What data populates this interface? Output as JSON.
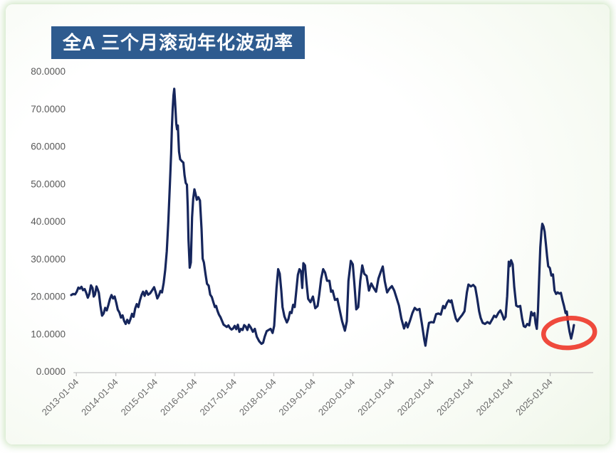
{
  "panel": {
    "glow_color": "#d7ebcb"
  },
  "chart": {
    "title": "全A 三个月滚动年化波动率",
    "title_bg": "#2E5B8F",
    "title_color": "#FFFFFF",
    "line_color": "#16265C",
    "axis_color": "#C6C6C6",
    "y_label_color": "#595959",
    "x_label_color": "#6A6A6A",
    "highlight_color": "#EE3B2C"
  },
  "chart_data": {
    "type": "line",
    "title": "全A 三个月滚动年化波动率",
    "xlabel": "",
    "ylabel": "",
    "ylim": [
      0,
      80
    ],
    "y_tick_labels": [
      "0.0000",
      "10.0000",
      "20.0000",
      "30.0000",
      "40.0000",
      "50.0000",
      "60.0000",
      "70.0000",
      "80.0000"
    ],
    "x_tick_labels": [
      "2013-01-04",
      "2014-01-04",
      "2015-01-04",
      "2016-01-04",
      "2017-01-04",
      "2018-01-04",
      "2019-01-04",
      "2020-01-04",
      "2021-01-04",
      "2022-01-04",
      "2023-01-04",
      "2024-01-04",
      "2025-01-04"
    ],
    "grid": false,
    "legend": false,
    "series": [
      {
        "name": "全A三个月滚动年化波动率",
        "points": [
          [
            0,
            20.3
          ],
          [
            0.05,
            20.6
          ],
          [
            0.1,
            20.5
          ],
          [
            0.14,
            21.2
          ],
          [
            0.18,
            22.3
          ],
          [
            0.22,
            22
          ],
          [
            0.26,
            22.5
          ],
          [
            0.3,
            21.6
          ],
          [
            0.34,
            21.9
          ],
          [
            0.38,
            20.9
          ],
          [
            0.42,
            19.6
          ],
          [
            0.46,
            20.6
          ],
          [
            0.5,
            22.9
          ],
          [
            0.54,
            22.2
          ],
          [
            0.57,
            19.9
          ],
          [
            0.6,
            20.4
          ],
          [
            0.64,
            22.6
          ],
          [
            0.67,
            21.8
          ],
          [
            0.7,
            20.9
          ],
          [
            0.74,
            17.5
          ],
          [
            0.78,
            14.8
          ],
          [
            0.82,
            15.4
          ],
          [
            0.86,
            16.9
          ],
          [
            0.9,
            16.2
          ],
          [
            0.94,
            17.6
          ],
          [
            0.98,
            19.2
          ],
          [
            1.02,
            20.3
          ],
          [
            1.06,
            19.4
          ],
          [
            1.1,
            19.9
          ],
          [
            1.14,
            18.3
          ],
          [
            1.18,
            16.4
          ],
          [
            1.22,
            15.7
          ],
          [
            1.26,
            14.3
          ],
          [
            1.3,
            14.9
          ],
          [
            1.34,
            13.4
          ],
          [
            1.38,
            12.6
          ],
          [
            1.42,
            13.7
          ],
          [
            1.46,
            12.8
          ],
          [
            1.5,
            13.9
          ],
          [
            1.54,
            15.3
          ],
          [
            1.58,
            14.5
          ],
          [
            1.62,
            16.7
          ],
          [
            1.66,
            17.9
          ],
          [
            1.7,
            17.1
          ],
          [
            1.74,
            18.9
          ],
          [
            1.78,
            20.3
          ],
          [
            1.82,
            21.2
          ],
          [
            1.86,
            20.1
          ],
          [
            1.9,
            21.4
          ],
          [
            1.95,
            20.4
          ],
          [
            2,
            20.8
          ],
          [
            2.05,
            21.6
          ],
          [
            2.1,
            22.4
          ],
          [
            2.14,
            21
          ],
          [
            2.18,
            19.4
          ],
          [
            2.22,
            20.2
          ],
          [
            2.26,
            21.4
          ],
          [
            2.3,
            21
          ],
          [
            2.34,
            23.5
          ],
          [
            2.38,
            27
          ],
          [
            2.42,
            32
          ],
          [
            2.46,
            40
          ],
          [
            2.5,
            50
          ],
          [
            2.53,
            58
          ],
          [
            2.55,
            65
          ],
          [
            2.57,
            70
          ],
          [
            2.59,
            73.5
          ],
          [
            2.61,
            75.3
          ],
          [
            2.63,
            72
          ],
          [
            2.66,
            66
          ],
          [
            2.68,
            64.5
          ],
          [
            2.7,
            65.5
          ],
          [
            2.73,
            58.5
          ],
          [
            2.76,
            56.5
          ],
          [
            2.8,
            56
          ],
          [
            2.84,
            55.6
          ],
          [
            2.87,
            52.3
          ],
          [
            2.9,
            50.2
          ],
          [
            2.93,
            49.7
          ],
          [
            2.95,
            44
          ],
          [
            2.97,
            35
          ],
          [
            3,
            27.6
          ],
          [
            3.03,
            29
          ],
          [
            3.06,
            41
          ],
          [
            3.09,
            46
          ],
          [
            3.12,
            48.5
          ],
          [
            3.15,
            47.2
          ],
          [
            3.18,
            45.7
          ],
          [
            3.22,
            46.4
          ],
          [
            3.26,
            45.5
          ],
          [
            3.3,
            38
          ],
          [
            3.33,
            30
          ],
          [
            3.36,
            29
          ],
          [
            3.4,
            26
          ],
          [
            3.44,
            23.3
          ],
          [
            3.48,
            22.8
          ],
          [
            3.52,
            20.4
          ],
          [
            3.56,
            19.8
          ],
          [
            3.6,
            18.4
          ],
          [
            3.64,
            17.1
          ],
          [
            3.67,
            17.4
          ],
          [
            3.7,
            16.2
          ],
          [
            3.74,
            15.1
          ],
          [
            3.78,
            14.4
          ],
          [
            3.82,
            13.4
          ],
          [
            3.86,
            12.4
          ],
          [
            3.9,
            12.1
          ],
          [
            3.94,
            11.8
          ],
          [
            3.98,
            12.2
          ],
          [
            4.02,
            11.5
          ],
          [
            4.06,
            11.1
          ],
          [
            4.1,
            11.4
          ],
          [
            4.14,
            12.1
          ],
          [
            4.18,
            11.2
          ],
          [
            4.22,
            12.4
          ],
          [
            4.26,
            10.5
          ],
          [
            4.3,
            11.3
          ],
          [
            4.34,
            11
          ],
          [
            4.38,
            12.3
          ],
          [
            4.42,
            11.9
          ],
          [
            4.46,
            11
          ],
          [
            4.5,
            12.4
          ],
          [
            4.55,
            11.6
          ],
          [
            4.6,
            10.5
          ],
          [
            4.65,
            11.3
          ],
          [
            4.7,
            9.2
          ],
          [
            4.76,
            8
          ],
          [
            4.82,
            7.3
          ],
          [
            4.86,
            7.6
          ],
          [
            4.9,
            9.2
          ],
          [
            4.95,
            10.7
          ],
          [
            5,
            11
          ],
          [
            5.05,
            11.3
          ],
          [
            5.1,
            10.2
          ],
          [
            5.14,
            12.1
          ],
          [
            5.2,
            22.2
          ],
          [
            5.24,
            27.2
          ],
          [
            5.28,
            26
          ],
          [
            5.32,
            21.5
          ],
          [
            5.35,
            17.1
          ],
          [
            5.4,
            14.6
          ],
          [
            5.46,
            13
          ],
          [
            5.5,
            13.9
          ],
          [
            5.54,
            15.8
          ],
          [
            5.58,
            15.5
          ],
          [
            5.62,
            17.7
          ],
          [
            5.66,
            17.1
          ],
          [
            5.7,
            21.5
          ],
          [
            5.74,
            25.7
          ],
          [
            5.78,
            27.2
          ],
          [
            5.82,
            26.6
          ],
          [
            5.85,
            22.2
          ],
          [
            5.88,
            28.8
          ],
          [
            5.92,
            28.2
          ],
          [
            5.96,
            23.4
          ],
          [
            6,
            19.3
          ],
          [
            6.06,
            18.4
          ],
          [
            6.12,
            19.9
          ],
          [
            6.18,
            16.8
          ],
          [
            6.24,
            17.4
          ],
          [
            6.28,
            20.3
          ],
          [
            6.33,
            24.7
          ],
          [
            6.38,
            27.2
          ],
          [
            6.43,
            26.3
          ],
          [
            6.48,
            24.1
          ],
          [
            6.54,
            24.1
          ],
          [
            6.58,
            21.2
          ],
          [
            6.62,
            21.5
          ],
          [
            6.68,
            19
          ],
          [
            6.74,
            19.3
          ],
          [
            6.8,
            16.2
          ],
          [
            6.86,
            13.3
          ],
          [
            6.93,
            10.8
          ],
          [
            6.98,
            13.3
          ],
          [
            7.02,
            24.1
          ],
          [
            7.08,
            29.4
          ],
          [
            7.13,
            28.5
          ],
          [
            7.17,
            23.4
          ],
          [
            7.22,
            16.5
          ],
          [
            7.27,
            17.1
          ],
          [
            7.32,
            24.1
          ],
          [
            7.37,
            28.2
          ],
          [
            7.42,
            26
          ],
          [
            7.48,
            25.4
          ],
          [
            7.54,
            21.5
          ],
          [
            7.6,
            23.4
          ],
          [
            7.66,
            22.2
          ],
          [
            7.72,
            21.2
          ],
          [
            7.78,
            24.7
          ],
          [
            7.84,
            26.5
          ],
          [
            7.89,
            27.9
          ],
          [
            7.94,
            24
          ],
          [
            8,
            21
          ],
          [
            8.06,
            22
          ],
          [
            8.12,
            22.7
          ],
          [
            8.18,
            21.5
          ],
          [
            8.24,
            19.5
          ],
          [
            8.3,
            17.5
          ],
          [
            8.36,
            14
          ],
          [
            8.43,
            11.4
          ],
          [
            8.48,
            13
          ],
          [
            8.52,
            11.7
          ],
          [
            8.58,
            13.5
          ],
          [
            8.64,
            15.5
          ],
          [
            8.7,
            16.9
          ],
          [
            8.76,
            16.3
          ],
          [
            8.82,
            16.6
          ],
          [
            8.88,
            12.7
          ],
          [
            8.94,
            8.5
          ],
          [
            8.97,
            6.8
          ],
          [
            9.02,
            10.5
          ],
          [
            9.06,
            12.9
          ],
          [
            9.12,
            13.1
          ],
          [
            9.18,
            13
          ],
          [
            9.24,
            15.2
          ],
          [
            9.3,
            15.4
          ],
          [
            9.36,
            15.1
          ],
          [
            9.42,
            17.4
          ],
          [
            9.46,
            16.8
          ],
          [
            9.52,
            18.3
          ],
          [
            9.56,
            18.9
          ],
          [
            9.6,
            18.4
          ],
          [
            9.63,
            18.9
          ],
          [
            9.68,
            16.5
          ],
          [
            9.74,
            14
          ],
          [
            9.78,
            13.3
          ],
          [
            9.84,
            14.2
          ],
          [
            9.9,
            15
          ],
          [
            9.96,
            16
          ],
          [
            10.02,
            21
          ],
          [
            10.06,
            23.1
          ],
          [
            10.12,
            22.6
          ],
          [
            10.18,
            23
          ],
          [
            10.23,
            22.4
          ],
          [
            10.28,
            19.5
          ],
          [
            10.33,
            16
          ],
          [
            10.37,
            14.2
          ],
          [
            10.42,
            12.9
          ],
          [
            10.48,
            12.6
          ],
          [
            10.54,
            13.1
          ],
          [
            10.6,
            12.7
          ],
          [
            10.66,
            13.8
          ],
          [
            10.71,
            14.8
          ],
          [
            10.76,
            14.4
          ],
          [
            10.82,
            15.6
          ],
          [
            10.87,
            16.2
          ],
          [
            10.92,
            15
          ],
          [
            10.96,
            13.8
          ],
          [
            11,
            14.5
          ],
          [
            11.04,
            20
          ],
          [
            11.08,
            29.2
          ],
          [
            11.11,
            28
          ],
          [
            11.14,
            29.6
          ],
          [
            11.18,
            28.5
          ],
          [
            11.22,
            22.5
          ],
          [
            11.27,
            17.5
          ],
          [
            11.32,
            17.2
          ],
          [
            11.37,
            17.4
          ],
          [
            11.42,
            14
          ],
          [
            11.46,
            12
          ],
          [
            11.5,
            11.8
          ],
          [
            11.55,
            12.6
          ],
          [
            11.6,
            12.2
          ],
          [
            11.65,
            15.8
          ],
          [
            11.69,
            14.9
          ],
          [
            11.73,
            15.5
          ],
          [
            11.76,
            12.8
          ],
          [
            11.79,
            11.3
          ],
          [
            11.82,
            16
          ],
          [
            11.85,
            25
          ],
          [
            11.88,
            33
          ],
          [
            11.91,
            37.5
          ],
          [
            11.93,
            39.3
          ],
          [
            11.96,
            38.6
          ],
          [
            11.99,
            37.2
          ],
          [
            12.02,
            34
          ],
          [
            12.05,
            30.7
          ],
          [
            12.08,
            28
          ],
          [
            12.12,
            27.5
          ],
          [
            12.16,
            25.5
          ],
          [
            12.2,
            25.8
          ],
          [
            12.24,
            21.5
          ],
          [
            12.28,
            20.6
          ],
          [
            12.32,
            21
          ],
          [
            12.36,
            20.7
          ],
          [
            12.4,
            20.9
          ],
          [
            12.44,
            19
          ],
          [
            12.48,
            17.4
          ],
          [
            12.52,
            15.5
          ],
          [
            12.55,
            15.9
          ],
          [
            12.58,
            13
          ],
          [
            12.62,
            10.5
          ],
          [
            12.66,
            8.7
          ],
          [
            12.7,
            10.5
          ],
          [
            12.73,
            12.3
          ]
        ]
      }
    ],
    "annotation": {
      "shape": "ellipse",
      "center_t": 12.61,
      "center_value": 10.2,
      "radius_t": 0.65,
      "radius_value": 3.95
    }
  }
}
